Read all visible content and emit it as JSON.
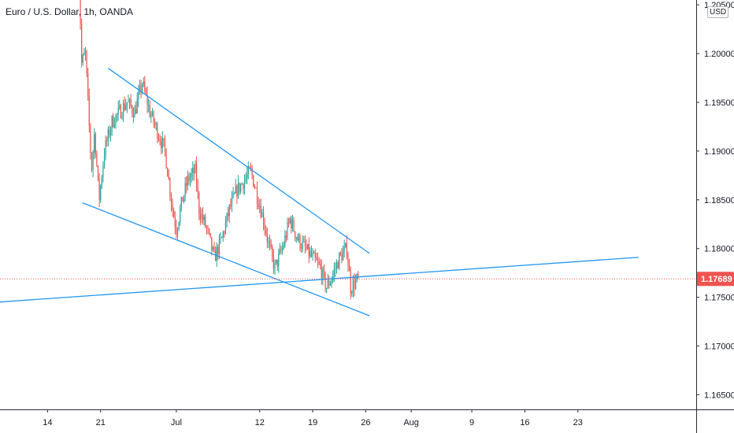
{
  "header": {
    "title": "Euro / U.S. Dollar, 1h, OANDA",
    "currency": "USD"
  },
  "colors": {
    "up": "#26a69a",
    "down": "#ef5350",
    "trendline": "#2196f3",
    "last_price_bg": "#ef5350",
    "axis": "#131722"
  },
  "chart_data": {
    "type": "candlestick",
    "title": "Euro / U.S. Dollar, 1h, OANDA",
    "ylim": [
      1.1635,
      1.2055
    ],
    "price_ticks": [
      "1.20500",
      "1.20000",
      "1.19500",
      "1.19000",
      "1.18500",
      "1.18000",
      "1.17500",
      "1.17000",
      "1.16500"
    ],
    "time_ticks": [
      {
        "label": "14",
        "day": 14
      },
      {
        "label": "21",
        "day": 21
      },
      {
        "label": "Jul",
        "day": 31
      },
      {
        "label": "12",
        "day": 42
      },
      {
        "label": "19",
        "day": 49
      },
      {
        "label": "26",
        "day": 56
      },
      {
        "label": "Aug",
        "day": 62
      },
      {
        "label": "9",
        "day": 70
      },
      {
        "label": "16",
        "day": 77
      },
      {
        "label": "23",
        "day": 84
      }
    ],
    "last_price": "1.17689",
    "last_price_value": 1.17689,
    "start_day": 18.0,
    "end_day": 55.0,
    "anchors": [
      [
        18.0,
        1.212
      ],
      [
        18.5,
        1.199
      ],
      [
        19.0,
        1.2
      ],
      [
        19.4,
        1.194
      ],
      [
        19.8,
        1.188
      ],
      [
        20.2,
        1.192
      ],
      [
        20.8,
        1.185
      ],
      [
        21.5,
        1.19
      ],
      [
        22.5,
        1.193
      ],
      [
        23.5,
        1.194
      ],
      [
        24.5,
        1.195
      ],
      [
        25.5,
        1.194
      ],
      [
        26.5,
        1.197
      ],
      [
        27.5,
        1.194
      ],
      [
        28.5,
        1.192
      ],
      [
        29.5,
        1.19
      ],
      [
        30.0,
        1.187
      ],
      [
        30.5,
        1.184
      ],
      [
        31.0,
        1.182
      ],
      [
        31.8,
        1.185
      ],
      [
        32.5,
        1.187
      ],
      [
        33.5,
        1.188
      ],
      [
        34.0,
        1.184
      ],
      [
        35.0,
        1.182
      ],
      [
        36.0,
        1.179
      ],
      [
        37.0,
        1.181
      ],
      [
        38.0,
        1.184
      ],
      [
        39.0,
        1.186
      ],
      [
        40.0,
        1.187
      ],
      [
        40.8,
        1.188
      ],
      [
        41.5,
        1.186
      ],
      [
        42.5,
        1.183
      ],
      [
        43.3,
        1.18
      ],
      [
        44.0,
        1.178
      ],
      [
        45.0,
        1.18
      ],
      [
        46.0,
        1.183
      ],
      [
        47.0,
        1.181
      ],
      [
        48.0,
        1.18
      ],
      [
        49.0,
        1.179
      ],
      [
        50.0,
        1.178
      ],
      [
        50.8,
        1.176
      ],
      [
        51.5,
        1.177
      ],
      [
        52.5,
        1.179
      ],
      [
        53.5,
        1.18
      ],
      [
        54.0,
        1.176
      ],
      [
        55.0,
        1.1769
      ]
    ],
    "trendlines": [
      {
        "name": "upper-channel-line",
        "x1": 22.0,
        "y1": 1.1985,
        "x2": 56.5,
        "y2": 1.1795
      },
      {
        "name": "lower-channel-line",
        "x1": 18.6,
        "y1": 1.1847,
        "x2": 56.5,
        "y2": 1.1731
      },
      {
        "name": "rising-support-line",
        "x1": 0.0,
        "y1": 1.1741,
        "x2": 92.0,
        "y2": 1.1791
      }
    ]
  }
}
